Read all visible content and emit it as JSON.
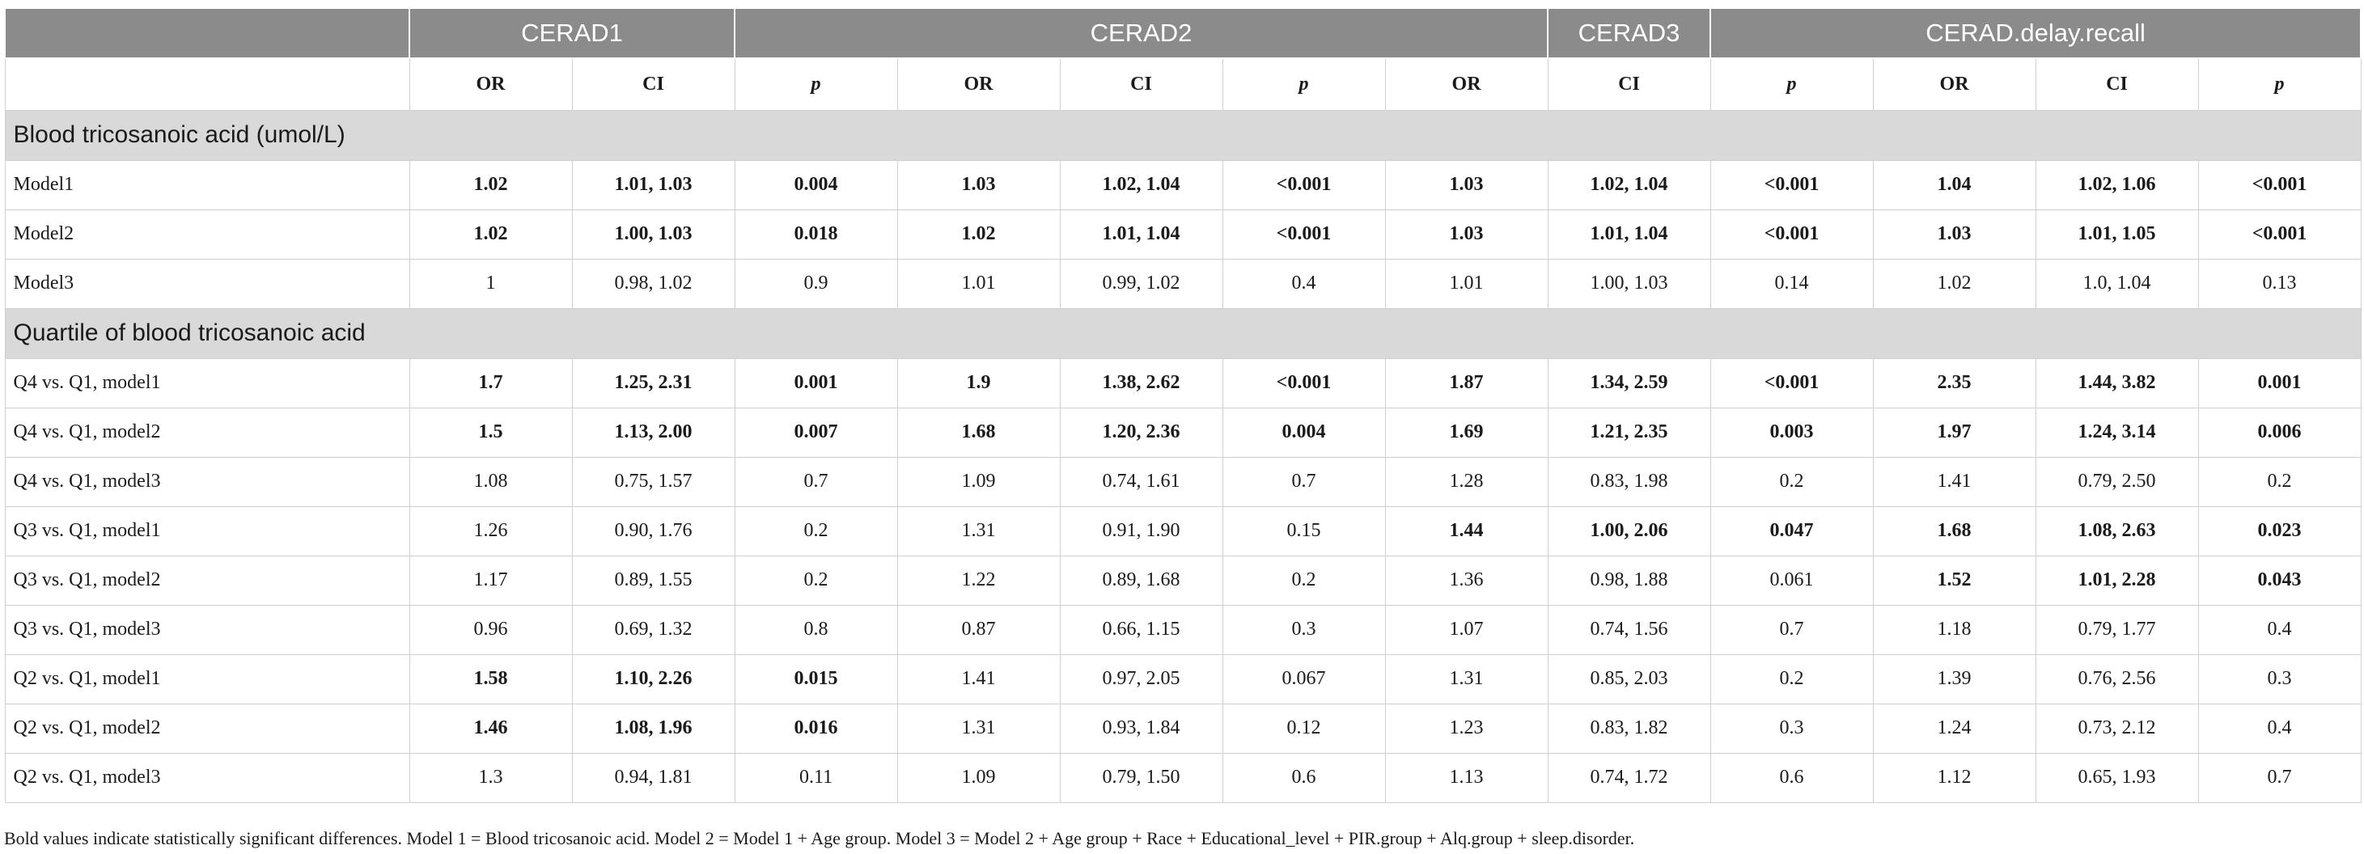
{
  "table": {
    "groups": [
      "CERAD1",
      "CERAD2",
      "CERAD3",
      "CERAD.delay.recall"
    ],
    "columns": [
      "OR",
      "CI",
      "p",
      "OR",
      "CI",
      "p",
      "OR",
      "CI",
      "p",
      "OR",
      "CI",
      "p"
    ],
    "sections": [
      {
        "title": "Blood tricosanoic acid (umol/L)",
        "rows": [
          {
            "label": "Model1",
            "cells": [
              "1.02",
              "1.01, 1.03",
              "0.004",
              "1.03",
              "1.02, 1.04",
              "<0.001",
              "1.03",
              "1.02, 1.04",
              "<0.001",
              "1.04",
              "1.02, 1.06",
              "<0.001"
            ],
            "bold": [
              0,
              1,
              2,
              3,
              4,
              5,
              6,
              7,
              8,
              9,
              10,
              11
            ]
          },
          {
            "label": "Model2",
            "cells": [
              "1.02",
              "1.00, 1.03",
              "0.018",
              "1.02",
              "1.01, 1.04",
              "<0.001",
              "1.03",
              "1.01, 1.04",
              "<0.001",
              "1.03",
              "1.01, 1.05",
              "<0.001"
            ],
            "bold": [
              0,
              1,
              2,
              3,
              4,
              5,
              6,
              7,
              8,
              9,
              10,
              11
            ]
          },
          {
            "label": "Model3",
            "cells": [
              "1",
              "0.98, 1.02",
              "0.9",
              "1.01",
              "0.99, 1.02",
              "0.4",
              "1.01",
              "1.00, 1.03",
              "0.14",
              "1.02",
              "1.0, 1.04",
              "0.13"
            ]
          }
        ]
      },
      {
        "title": "Quartile of blood tricosanoic acid",
        "rows": [
          {
            "label": "Q4 vs. Q1, model1",
            "cells": [
              "1.7",
              "1.25, 2.31",
              "0.001",
              "1.9",
              "1.38, 2.62",
              "<0.001",
              "1.87",
              "1.34, 2.59",
              "<0.001",
              "2.35",
              "1.44, 3.82",
              "0.001"
            ],
            "bold": [
              0,
              1,
              2,
              3,
              4,
              5,
              6,
              7,
              8,
              9,
              10,
              11
            ]
          },
          {
            "label": "Q4 vs. Q1, model2",
            "cells": [
              "1.5",
              "1.13, 2.00",
              "0.007",
              "1.68",
              "1.20, 2.36",
              "0.004",
              "1.69",
              "1.21, 2.35",
              "0.003",
              "1.97",
              "1.24, 3.14",
              "0.006"
            ],
            "bold": [
              0,
              1,
              2,
              3,
              4,
              5,
              6,
              7,
              8,
              9,
              10,
              11
            ]
          },
          {
            "label": "Q4 vs. Q1, model3",
            "cells": [
              "1.08",
              "0.75, 1.57",
              "0.7",
              "1.09",
              "0.74, 1.61",
              "0.7",
              "1.28",
              "0.83, 1.98",
              "0.2",
              "1.41",
              "0.79, 2.50",
              "0.2"
            ]
          },
          {
            "label": "Q3 vs. Q1, model1",
            "cells": [
              "1.26",
              "0.90, 1.76",
              "0.2",
              "1.31",
              "0.91, 1.90",
              "0.15",
              "1.44",
              "1.00, 2.06",
              "0.047",
              "1.68",
              "1.08, 2.63",
              "0.023"
            ],
            "bold": [
              6,
              7,
              8,
              9,
              10,
              11
            ]
          },
          {
            "label": "Q3 vs. Q1, model2",
            "cells": [
              "1.17",
              "0.89, 1.55",
              "0.2",
              "1.22",
              "0.89, 1.68",
              "0.2",
              "1.36",
              "0.98, 1.88",
              "0.061",
              "1.52",
              "1.01, 2.28",
              "0.043"
            ],
            "bold": [
              9,
              10,
              11
            ]
          },
          {
            "label": "Q3 vs. Q1, model3",
            "cells": [
              "0.96",
              "0.69, 1.32",
              "0.8",
              "0.87",
              "0.66, 1.15",
              "0.3",
              "1.07",
              "0.74, 1.56",
              "0.7",
              "1.18",
              "0.79, 1.77",
              "0.4"
            ]
          },
          {
            "label": "Q2 vs. Q1, model1",
            "cells": [
              "1.58",
              "1.10, 2.26",
              "0.015",
              "1.41",
              "0.97, 2.05",
              "0.067",
              "1.31",
              "0.85, 2.03",
              "0.2",
              "1.39",
              "0.76, 2.56",
              "0.3"
            ],
            "bold": [
              0,
              1,
              2
            ]
          },
          {
            "label": "Q2 vs. Q1, model2",
            "cells": [
              "1.46",
              "1.08, 1.96",
              "0.016",
              "1.31",
              "0.93, 1.84",
              "0.12",
              "1.23",
              "0.83, 1.82",
              "0.3",
              "1.24",
              "0.73, 2.12",
              "0.4"
            ],
            "bold": [
              0,
              1,
              2
            ]
          },
          {
            "label": "Q2 vs. Q1, model3",
            "cells": [
              "1.3",
              "0.94, 1.81",
              "0.11",
              "1.09",
              "0.79, 1.50",
              "0.6",
              "1.13",
              "0.74, 1.72",
              "0.6",
              "1.12",
              "0.65, 1.93",
              "0.7"
            ]
          }
        ]
      }
    ],
    "note": "Bold values indicate statistically significant differences. Model 1 = Blood tricosanoic acid. Model 2 = Model 1 + Age group. Model 3 = Model 2 + Age group + Race + Educational_level + PIR.group + Alq.group + sleep.disorder."
  }
}
